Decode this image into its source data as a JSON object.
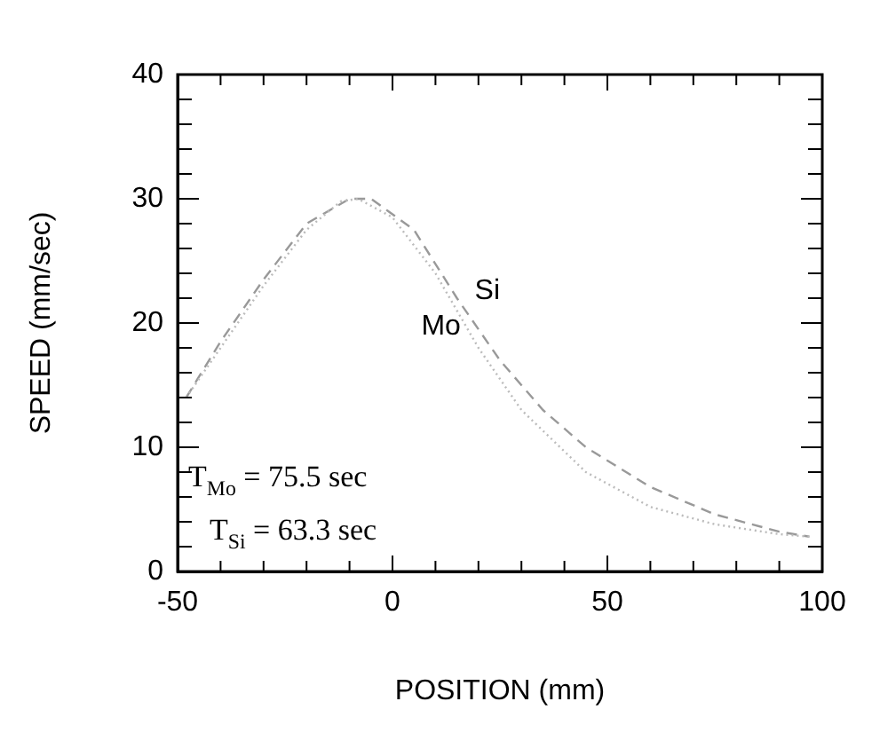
{
  "chart_data": {
    "type": "line",
    "xlabel": "POSITION (mm)",
    "ylabel": "SPEED (mm/sec)",
    "xlim": [
      -50,
      100
    ],
    "ylim": [
      0,
      40
    ],
    "xticks": [
      -50,
      {
        "value": -40,
        "label": null
      },
      {
        "value": -30,
        "label": null
      },
      {
        "value": -20,
        "label": null
      },
      {
        "value": -10,
        "label": null
      },
      0,
      {
        "value": 10,
        "label": null
      },
      {
        "value": 20,
        "label": null
      },
      {
        "value": 30,
        "label": null
      },
      {
        "value": 40,
        "label": null
      },
      50,
      {
        "value": 60,
        "label": null
      },
      {
        "value": 70,
        "label": null
      },
      {
        "value": 80,
        "label": null
      },
      {
        "value": 90,
        "label": null
      },
      100
    ],
    "yticks": [
      0,
      {
        "value": 2,
        "label": null
      },
      {
        "value": 4,
        "label": null
      },
      {
        "value": 6,
        "label": null
      },
      {
        "value": 8,
        "label": null
      },
      10,
      {
        "value": 12,
        "label": null
      },
      {
        "value": 14,
        "label": null
      },
      {
        "value": 16,
        "label": null
      },
      {
        "value": 18,
        "label": null
      },
      20,
      {
        "value": 22,
        "label": null
      },
      {
        "value": 24,
        "label": null
      },
      {
        "value": 26,
        "label": null
      },
      {
        "value": 28,
        "label": null
      },
      30,
      {
        "value": 32,
        "label": null
      },
      {
        "value": 34,
        "label": null
      },
      {
        "value": 36,
        "label": null
      },
      {
        "value": 38,
        "label": null
      },
      40
    ],
    "grid": false,
    "legend": false,
    "marker": "none",
    "series": [
      {
        "name": "Mo",
        "color": "#bbbbbb",
        "line_style": "dotted",
        "x": [
          -48,
          -40,
          -30,
          -20,
          -12,
          -8,
          0,
          10,
          20,
          30,
          45,
          60,
          75,
          90,
          97
        ],
        "values": [
          14,
          18,
          23,
          27.5,
          29.8,
          30,
          28.5,
          24,
          18,
          13,
          8,
          5.2,
          3.8,
          3,
          2.8
        ]
      },
      {
        "name": "Si",
        "color": "#999999",
        "line_style": "dashed",
        "x": [
          -48,
          -40,
          -30,
          -20,
          -10,
          -5,
          5,
          15,
          25,
          35,
          45,
          60,
          75,
          90,
          97
        ],
        "values": [
          14,
          18.5,
          23.5,
          28,
          30,
          30,
          27.5,
          22,
          17,
          13,
          10,
          6.8,
          4.6,
          3.2,
          2.8
        ]
      }
    ],
    "annotations": [
      "T$_{Mo}$ = 75.5 sec",
      "T$_{Si}$ = 63.3 sec"
    ]
  }
}
